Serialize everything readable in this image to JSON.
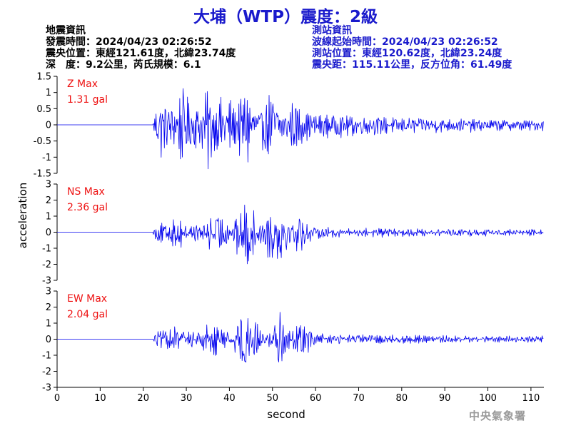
{
  "title": "大埔（WTP）震度：2級",
  "earthquake_info": {
    "heading": "地震資訊",
    "origin_time": "發震時間：2024/04/23 02:26:52",
    "epicenter": "震央位置：東經121.61度，北緯23.74度",
    "depth_magnitude": "深　度：9.2公里，芮氏規模：6.1"
  },
  "station_info": {
    "heading": "測站資訊",
    "wave_start": "波線起始時間：2024/04/23 02:26:52",
    "location": "測站位置：東經120.62度，北緯23.24度",
    "distance_azimuth": "震央距：115.11公里，反方位角：61.49度"
  },
  "watermark": "中央氣象署",
  "chart_data": {
    "type": "line",
    "xlabel": "second",
    "ylabel": "acceleration",
    "xlim": [
      0,
      113
    ],
    "xticks": [
      0,
      10,
      20,
      30,
      40,
      50,
      60,
      70,
      80,
      90,
      100,
      110
    ],
    "line_color": "#0000ee",
    "max_label_color": "#ee1111",
    "panels": [
      {
        "max_label": "Z Max",
        "max_value": "1.31 gal",
        "peak": 1.31,
        "ylim": [
          -1.5,
          1.5
        ],
        "yticks": [
          -1.5,
          -1,
          -0.5,
          0,
          0.5,
          1,
          1.5
        ],
        "ytick_labels": [
          "-1.5",
          "-1",
          "-0.5",
          "0",
          "0.5",
          "1",
          "1.5"
        ]
      },
      {
        "max_label": "NS Max",
        "max_value": "2.36 gal",
        "peak": 2.36,
        "ylim": [
          -3,
          3
        ],
        "yticks": [
          -3,
          -2,
          -1,
          0,
          1,
          2,
          3
        ],
        "ytick_labels": [
          "-3",
          "-2",
          "-1",
          "0",
          "1",
          "2",
          "3"
        ]
      },
      {
        "max_label": "EW Max",
        "max_value": "2.04 gal",
        "peak": 2.04,
        "ylim": [
          -3,
          3
        ],
        "yticks": [
          -3,
          -2,
          -1,
          0,
          1,
          2,
          3
        ],
        "ytick_labels": [
          "-3",
          "-2",
          "-1",
          "0",
          "1",
          "2",
          "3"
        ]
      }
    ]
  }
}
